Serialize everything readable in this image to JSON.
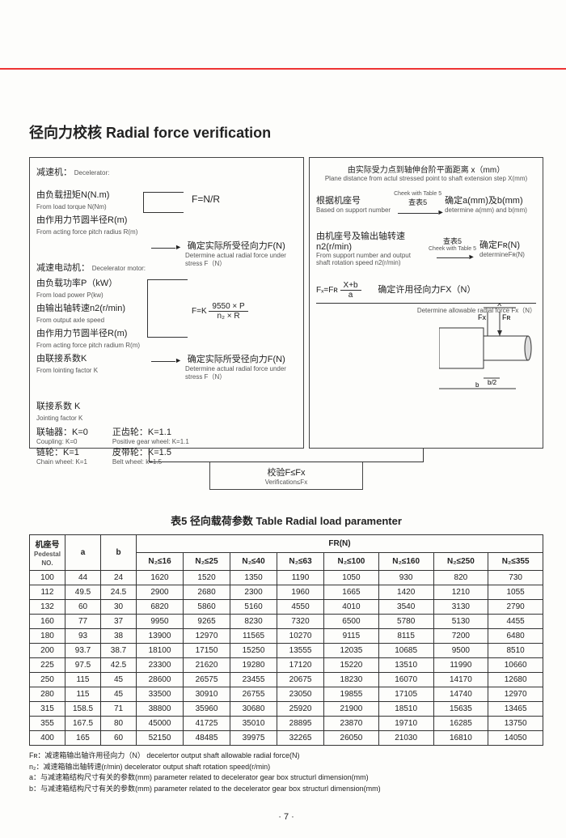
{
  "title": "径向力校核  Radial force verification",
  "left": {
    "header_zh": "由实际受力点到轴伸台阶平面距离 x（mm）",
    "decel_zh": "减速机：",
    "decel_en": "Decelerator:",
    "n_zh": "由负载扭矩N(N.m)",
    "n_en": "From load torque N(Nm)",
    "r_zh": "由作用力节圆半径R(m)",
    "r_en": "From acting force pitch radius R(m)",
    "fnr": "F=N/R",
    "det_zh": "确定实际所受径向力F(N)",
    "det_en": "Determine actual radial force under stress F（N）",
    "motor_zh": "减速电动机：",
    "motor_en": "Decelerator motor:",
    "p_zh": "由负载功率P（kW）",
    "p_en": "From load power P(kw)",
    "n2_zh": "由输出轴转速n2(r/min)",
    "n2_en": "From output axle speed",
    "rm_zh": "由作用力节圆半径R(m)",
    "rm_en": "From acting force pitch radium R(m)",
    "k_zh": "由联接系数K",
    "k_en": "From lointing factor K",
    "fk": "F=K",
    "fk_num": "9550 × P",
    "fk_den": "n₂ × R",
    "det2_zh": "确定实际所受径向力F(N)",
    "det2_en": "Determine actual radial force under stress F（N）",
    "joint_zh": "联接系数 K",
    "joint_en": "Jointing factor K",
    "coup_zh": "联轴器：K=0",
    "coup_en": "Coupling: K=0",
    "chain_zh": "链轮：K=1",
    "chain_en": "Chain wheel: K=1",
    "pos_zh": "正齿轮：K=1.1",
    "pos_en": "Positive gear wheel: K=1.1",
    "belt_zh": "皮带轮：K=1.5",
    "belt_en": "Belt wheel: k=1.5"
  },
  "right": {
    "header_zh": "由实际受力点到轴伸台阶平面距离 x（mm）",
    "header_en": "Plane distance from actul stressed point to shaft extension step X(mm)",
    "sup_zh": "根据机座号",
    "sup_en": "Based on support number",
    "chk5": "查表5",
    "chk5_en": "Cheek with Table 5",
    "ab_zh": "确定a(mm)及b(mm)",
    "ab_en": "determine a(mm) and b(mm)",
    "sup2_zh": "由机座号及输出轴转速n2(r/min)",
    "sup2_en": "From support number and output shaft rotation speed n2(r/min)",
    "fr_zh": "确定Fʀ(N)",
    "fr_en": "determineFʀ(N)",
    "eq": "Fₓ=Fʀ",
    "eq_num": "X+b",
    "eq_den": "a",
    "allow_zh": "确定许用径向力FX（N）",
    "allow_en": "Determine allowable radial force Fx（N）"
  },
  "verif_zh": "校验F≤Fx",
  "verif_en": "Verification≤Fx",
  "table_title": "表5 径向载荷参数 Table Radial load paramenter",
  "headers": {
    "ped_zh": "机座号",
    "ped": "Pedestal NO.",
    "a": "a",
    "b": "b",
    "fr": "FR(N)"
  },
  "cols": [
    "N₂≤16",
    "N₂≤25",
    "N₂≤40",
    "N₂≤63",
    "N₂≤100",
    "N₂≤160",
    "N₂≤250",
    "N₂≤355"
  ],
  "rows": [
    [
      "100",
      "44",
      "24",
      "1620",
      "1520",
      "1350",
      "1190",
      "1050",
      "930",
      "820",
      "730"
    ],
    [
      "112",
      "49.5",
      "24.5",
      "2900",
      "2680",
      "2300",
      "1960",
      "1665",
      "1420",
      "1210",
      "1055"
    ],
    [
      "132",
      "60",
      "30",
      "6820",
      "5860",
      "5160",
      "4550",
      "4010",
      "3540",
      "3130",
      "2790"
    ],
    [
      "160",
      "77",
      "37",
      "9950",
      "9265",
      "8230",
      "7320",
      "6500",
      "5780",
      "5130",
      "4455"
    ],
    [
      "180",
      "93",
      "38",
      "13900",
      "12970",
      "11565",
      "10270",
      "9115",
      "8115",
      "7200",
      "6480"
    ],
    [
      "200",
      "93.7",
      "38.7",
      "18100",
      "17150",
      "15250",
      "13555",
      "12035",
      "10685",
      "9500",
      "8510"
    ],
    [
      "225",
      "97.5",
      "42.5",
      "23300",
      "21620",
      "19280",
      "17120",
      "15220",
      "13510",
      "11990",
      "10660"
    ],
    [
      "250",
      "115",
      "45",
      "28600",
      "26575",
      "23455",
      "20675",
      "18230",
      "16070",
      "14170",
      "12680"
    ],
    [
      "280",
      "115",
      "45",
      "33500",
      "30910",
      "26755",
      "23050",
      "19855",
      "17105",
      "14740",
      "12970"
    ],
    [
      "315",
      "158.5",
      "71",
      "38800",
      "35960",
      "30680",
      "25920",
      "21900",
      "18510",
      "15635",
      "13465"
    ],
    [
      "355",
      "167.5",
      "80",
      "45000",
      "41725",
      "35010",
      "28895",
      "23870",
      "19710",
      "16285",
      "13750"
    ],
    [
      "400",
      "165",
      "60",
      "52150",
      "48485",
      "39975",
      "32265",
      "26050",
      "21030",
      "16810",
      "14050"
    ]
  ],
  "notes": {
    "fr": "Fʀ：减速箱输出轴许用径向力（N）  decelertor output shaft allowable radial force(N)",
    "n2": "n₂：减速箱输出轴转速(r/min)           decelerator output shaft rotation speed(r/min)",
    "a": "a：与减速箱结构尺寸有关的参数(mm)   parameter related to decelerator gear box structurl dimension(mm)",
    "b": "b：与减速箱结构尺寸有关的参数(mm)   parameter related to the decelerator gear box structurl dimension(mm)"
  },
  "page": "· 7 ·"
}
